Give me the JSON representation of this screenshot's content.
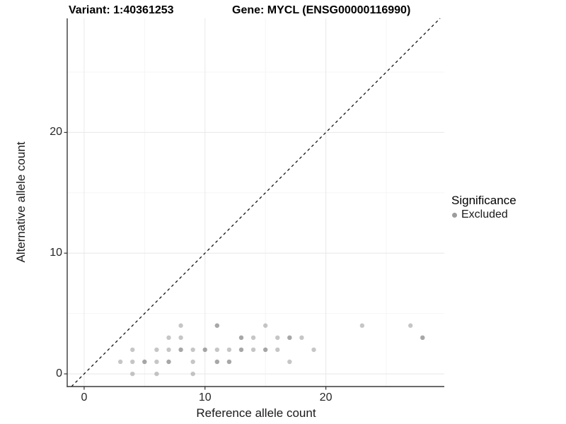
{
  "chart_data": {
    "type": "scatter",
    "title_left": "Variant: 1:40361253",
    "title_right": "Gene: MYCL (ENSG00000116990)",
    "xlabel": "Reference allele count",
    "ylabel": "Alternative allele count",
    "xlim": [
      -1.4,
      29.8
    ],
    "ylim": [
      -1.05,
      29.45
    ],
    "xticks": [
      {
        "value": 0,
        "label": "0"
      },
      {
        "value": 10,
        "label": "10"
      },
      {
        "value": 20,
        "label": "20"
      }
    ],
    "yticks": [
      {
        "value": 0,
        "label": "0"
      },
      {
        "value": 10,
        "label": "10"
      },
      {
        "value": 20,
        "label": "20"
      }
    ],
    "minor_xticks": [
      5,
      15,
      25
    ],
    "minor_yticks": [
      5,
      15,
      25
    ],
    "grid": "on",
    "identity_line": {
      "slope": 1,
      "intercept": 0,
      "style": "dashed"
    },
    "legend": {
      "title": "Significance",
      "position": "right",
      "items": [
        {
          "label": "Excluded",
          "color": "#808080"
        }
      ]
    },
    "series": [
      {
        "name": "Excluded",
        "points": [
          {
            "x": 3,
            "y": 1,
            "overlap": 1
          },
          {
            "x": 4,
            "y": 0,
            "overlap": 1
          },
          {
            "x": 4,
            "y": 1,
            "overlap": 1
          },
          {
            "x": 4,
            "y": 2,
            "overlap": 1
          },
          {
            "x": 5,
            "y": 1,
            "overlap": 2
          },
          {
            "x": 6,
            "y": 0,
            "overlap": 1
          },
          {
            "x": 6,
            "y": 1,
            "overlap": 1
          },
          {
            "x": 6,
            "y": 2,
            "overlap": 1
          },
          {
            "x": 7,
            "y": 1,
            "overlap": 2
          },
          {
            "x": 7,
            "y": 2,
            "overlap": 1
          },
          {
            "x": 7,
            "y": 3,
            "overlap": 1
          },
          {
            "x": 8,
            "y": 2,
            "overlap": 2
          },
          {
            "x": 8,
            "y": 3,
            "overlap": 1
          },
          {
            "x": 8,
            "y": 4,
            "overlap": 1
          },
          {
            "x": 9,
            "y": 0,
            "overlap": 1
          },
          {
            "x": 9,
            "y": 1,
            "overlap": 1
          },
          {
            "x": 9,
            "y": 2,
            "overlap": 1
          },
          {
            "x": 10,
            "y": 2,
            "overlap": 2
          },
          {
            "x": 11,
            "y": 1,
            "overlap": 2
          },
          {
            "x": 11,
            "y": 2,
            "overlap": 1
          },
          {
            "x": 11,
            "y": 4,
            "overlap": 2
          },
          {
            "x": 12,
            "y": 1,
            "overlap": 2
          },
          {
            "x": 12,
            "y": 2,
            "overlap": 1
          },
          {
            "x": 13,
            "y": 2,
            "overlap": 2
          },
          {
            "x": 13,
            "y": 3,
            "overlap": 2
          },
          {
            "x": 14,
            "y": 2,
            "overlap": 1
          },
          {
            "x": 14,
            "y": 3,
            "overlap": 1
          },
          {
            "x": 15,
            "y": 2,
            "overlap": 2
          },
          {
            "x": 15,
            "y": 4,
            "overlap": 1
          },
          {
            "x": 16,
            "y": 2,
            "overlap": 1
          },
          {
            "x": 16,
            "y": 3,
            "overlap": 1
          },
          {
            "x": 17,
            "y": 1,
            "overlap": 1
          },
          {
            "x": 17,
            "y": 3,
            "overlap": 2
          },
          {
            "x": 18,
            "y": 3,
            "overlap": 1
          },
          {
            "x": 19,
            "y": 2,
            "overlap": 1
          },
          {
            "x": 23,
            "y": 4,
            "overlap": 1
          },
          {
            "x": 27,
            "y": 4,
            "overlap": 1
          },
          {
            "x": 28,
            "y": 3,
            "overlap": 2
          }
        ]
      }
    ]
  },
  "colors": {
    "background": "#ffffff",
    "point": "#808080",
    "point_opacity": 0.45,
    "grid_major": "#e8e8e8",
    "grid_minor": "#f3f3f3",
    "axis": "#383838",
    "tick": "#333333",
    "text": "#1a1a1a",
    "identity_line": "#000000",
    "legend_key": "#9c9c9c"
  }
}
